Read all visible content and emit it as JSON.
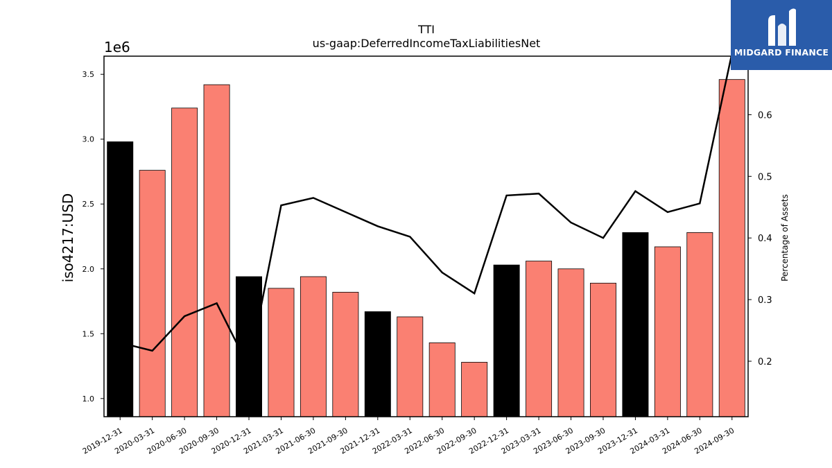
{
  "logo": {
    "brand": "MIDGARD FINANCE"
  },
  "chart_data": {
    "type": "bar",
    "title": "TTI",
    "subtitle": "us-gaap:DeferredIncomeTaxLiabilitiesNet",
    "ylabel": "iso4217:USD",
    "y2label": "Percentage of Assets",
    "offset_text": "1e6",
    "ylim": [
      0.86,
      3.64
    ],
    "y2lim": [
      0.11,
      0.695
    ],
    "yticks": [
      1.0,
      1.5,
      2.0,
      2.5,
      3.0,
      3.5
    ],
    "ytick_labels": [
      "1.0",
      "1.5",
      "2.0",
      "2.5",
      "3.0",
      "3.5"
    ],
    "y2ticks": [
      0.2,
      0.3,
      0.4,
      0.5,
      0.6
    ],
    "y2tick_labels": [
      "0.2",
      "0.3",
      "0.4",
      "0.5",
      "0.6"
    ],
    "categories": [
      "2019-12-31",
      "2020-03-31",
      "2020-06-30",
      "2020-09-30",
      "2020-12-31",
      "2021-03-31",
      "2021-06-30",
      "2021-09-30",
      "2021-12-31",
      "2022-03-31",
      "2022-06-30",
      "2022-09-30",
      "2022-12-31",
      "2023-03-31",
      "2023-06-30",
      "2023-09-30",
      "2023-12-31",
      "2024-03-31",
      "2024-06-30",
      "2024-09-30"
    ],
    "series": [
      {
        "type": "bar",
        "values": [
          2.98,
          2.76,
          3.24,
          3.42,
          1.94,
          1.85,
          1.94,
          1.82,
          1.67,
          1.63,
          1.43,
          1.28,
          2.03,
          2.06,
          2.0,
          1.89,
          2.28,
          2.17,
          2.28,
          3.46
        ],
        "colors": [
          "#000000",
          "#fa8072",
          "#fa8072",
          "#fa8072",
          "#000000",
          "#fa8072",
          "#fa8072",
          "#fa8072",
          "#000000",
          "#fa8072",
          "#fa8072",
          "#fa8072",
          "#000000",
          "#fa8072",
          "#fa8072",
          "#fa8072",
          "#000000",
          "#fa8072",
          "#fa8072",
          "#fa8072"
        ]
      },
      {
        "type": "line",
        "axis": "right",
        "color": "#000000",
        "values": [
          0.23,
          0.217,
          0.273,
          0.294,
          0.19,
          0.453,
          0.465,
          0.442,
          0.419,
          0.402,
          0.344,
          0.31,
          0.469,
          0.472,
          0.425,
          0.4,
          0.476,
          0.442,
          0.456,
          0.7
        ]
      }
    ]
  }
}
